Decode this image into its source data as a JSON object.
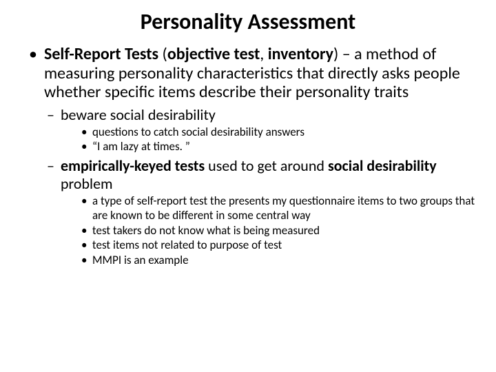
{
  "title": "Personality Assessment",
  "colors": {
    "text": "#000000",
    "background": "#ffffff"
  },
  "typography": {
    "font_family": "Calibri, Arial, sans-serif",
    "title_fontsize": 32,
    "l1_fontsize": 24,
    "l2_fontsize": 22,
    "l3_fontsize": 17
  },
  "l1": {
    "bullet": "•",
    "bold_lead": "Self-Report Tests",
    "plain1": " (",
    "bold_paren": "objective test",
    "plain2": ", ",
    "bold_paren2": "inventory",
    "plain3": ") – a method of measuring personality characteristics that directly asks people whether specific items describe their personality traits"
  },
  "l2a": {
    "dash": "–",
    "text": "beware social desirability"
  },
  "l3a": {
    "bullet": "•",
    "items": [
      "questions to catch social desirability answers",
      "“I am lazy at times. ”"
    ]
  },
  "l2b": {
    "dash": "–",
    "bold1": "empirically-keyed tests",
    "plain1": " used to get around ",
    "bold2": "social desirability",
    "plain2": " problem"
  },
  "l3b": {
    "bullet": "•",
    "items": [
      "a type of self-report test the presents my questionnaire items to two groups that are known to be different in some central way",
      "test takers do not know what is being measured",
      "test items not related to purpose of test",
      "MMPI is an example"
    ]
  }
}
